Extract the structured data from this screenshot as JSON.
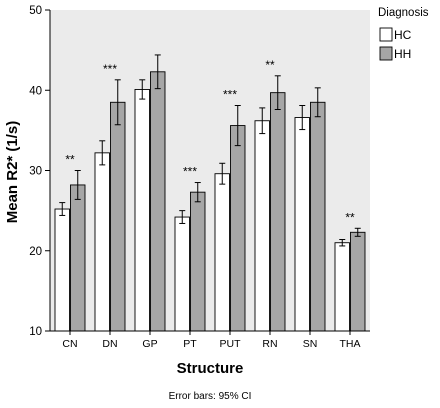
{
  "chart_data": {
    "type": "bar",
    "categories": [
      "CN",
      "DN",
      "GP",
      "PT",
      "PUT",
      "RN",
      "SN",
      "THA"
    ],
    "series": [
      {
        "name": "HC",
        "color": "#ffffff",
        "values": [
          25.2,
          32.2,
          40.1,
          24.2,
          29.6,
          36.2,
          36.6,
          21.0
        ],
        "ci_low": [
          24.4,
          30.7,
          38.9,
          23.4,
          28.3,
          34.6,
          35.1,
          20.6
        ],
        "ci_high": [
          26.0,
          33.7,
          41.3,
          25.0,
          30.9,
          37.8,
          38.1,
          21.4
        ]
      },
      {
        "name": "HH",
        "color": "#a6a6a6",
        "values": [
          28.2,
          38.5,
          42.3,
          27.3,
          35.6,
          39.7,
          38.5,
          22.3
        ],
        "ci_low": [
          26.4,
          35.7,
          40.2,
          26.1,
          33.1,
          37.6,
          36.7,
          21.8
        ],
        "ci_high": [
          30.0,
          41.3,
          44.4,
          28.5,
          38.1,
          41.8,
          40.3,
          22.8
        ]
      }
    ],
    "annotations": [
      "**",
      "***",
      "",
      "***",
      "***",
      "**",
      "",
      "**"
    ],
    "xlabel": "Structure",
    "ylabel": "Mean R2* (1/s)",
    "ylim": [
      10,
      50
    ],
    "yticks": [
      10,
      20,
      30,
      40,
      50
    ],
    "legend": {
      "title": "Diagnosis",
      "placement": "top-right, outside plot"
    },
    "footnote": "Error bars: 95% CI",
    "grid": false,
    "plot_background": "#ebebeb"
  }
}
